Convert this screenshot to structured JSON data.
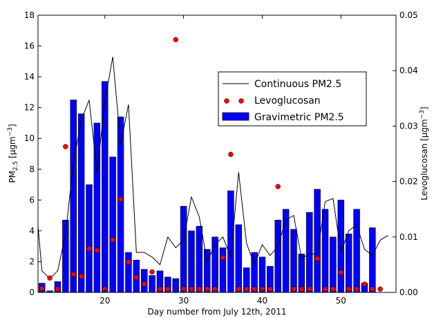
{
  "chart_data": {
    "type": "bar",
    "xlabel": "Day number from July 12th, 2011",
    "ylabel_left_main": "PM",
    "ylabel_left_sub": "2.5",
    "ylabel_left_rest": " [μgm",
    "ylabel_left_sup": "−3",
    "ylabel_left_end": "]",
    "ylabel_right": "Levoglucosan [μgm",
    "ylabel_right_sup": "−3",
    "ylabel_right_end": "]",
    "xlim": [
      11.5,
      57
    ],
    "ylim_left": [
      0,
      18
    ],
    "ylim_right": [
      0,
      0.05
    ],
    "x_ticks": [
      "20",
      "30",
      "40",
      "50"
    ],
    "x_tick_values": [
      20,
      30,
      40,
      50
    ],
    "y_left_ticks": [
      "0",
      "2",
      "4",
      "6",
      "8",
      "10",
      "12",
      "14",
      "16",
      "18"
    ],
    "y_left_tick_values": [
      0,
      2,
      4,
      6,
      8,
      10,
      12,
      14,
      16,
      18
    ],
    "y_right_ticks": [
      "0.00",
      "0.01",
      "0.02",
      "0.03",
      "0.04",
      "0.05"
    ],
    "y_right_tick_values": [
      0,
      0.01,
      0.02,
      0.03,
      0.04,
      0.05
    ],
    "legend": {
      "placement": "center-right",
      "entries": [
        "Continuous PM2.5",
        "Levoglucosan",
        "Gravimetric PM2.5"
      ]
    },
    "colors": {
      "bar": "#0000ff",
      "dot": "#ff0000",
      "line": "#000000"
    },
    "series": [
      {
        "name": "Gravimetric PM2.5",
        "type": "bar",
        "axis": "left",
        "x": [
          12,
          13,
          14,
          15,
          16,
          17,
          18,
          19,
          20,
          21,
          22,
          23,
          24,
          25,
          26,
          27,
          28,
          29,
          30,
          31,
          32,
          33,
          34,
          35,
          36,
          37,
          38,
          39,
          40,
          41,
          42,
          43,
          44,
          45,
          46,
          47,
          48,
          49,
          50,
          51,
          52,
          53,
          54,
          55,
          56
        ],
        "values": [
          0.6,
          0.1,
          0.7,
          4.7,
          12.5,
          11.6,
          7.0,
          11.0,
          13.7,
          8.8,
          11.4,
          2.6,
          2.1,
          1.5,
          1.1,
          1.4,
          1.0,
          0.9,
          5.6,
          4.0,
          4.3,
          2.8,
          3.6,
          2.9,
          6.6,
          4.4,
          1.6,
          2.6,
          2.3,
          1.7,
          4.7,
          5.4,
          4.1,
          2.5,
          5.2,
          6.7,
          5.4,
          3.6,
          6.0,
          3.8,
          5.4,
          0.6,
          4.2,
          0,
          0
        ]
      },
      {
        "name": "Levoglucosan",
        "type": "scatter",
        "axis": "right",
        "x": [
          12,
          13,
          14,
          15,
          16,
          17,
          18,
          19,
          20,
          21,
          22,
          23,
          24,
          25,
          26,
          27,
          28,
          29,
          30,
          31,
          32,
          33,
          34,
          35,
          36,
          37,
          38,
          39,
          40,
          41,
          42,
          43,
          44,
          45,
          46,
          47,
          48,
          49,
          50,
          51,
          52,
          53,
          54,
          55
        ],
        "values": [
          0.0007,
          0.0026,
          0.0006,
          0.0263,
          0.0033,
          0.0029,
          0.0079,
          0.0076,
          0.0006,
          0.0095,
          0.0168,
          0.0055,
          0.0027,
          0.0015,
          0.0037,
          0.0006,
          0.0006,
          0.0456,
          0.0006,
          0.0006,
          0.0006,
          0.0006,
          0.0006,
          0.0063,
          0.0249,
          0.0006,
          0.0006,
          0.0006,
          0.0006,
          0.0006,
          0.0191,
          0.0383,
          0.0006,
          0.0006,
          0.0006,
          0.0061,
          0.0006,
          0.0006,
          0.0036,
          0.0006,
          0.0006,
          0.0015,
          0.0006,
          0.0006
        ]
      },
      {
        "name": "Continuous PM2.5",
        "type": "line",
        "axis": "left",
        "x": [
          11.5,
          12,
          13,
          14,
          15,
          16,
          17,
          18,
          19,
          20,
          21,
          22,
          23,
          24,
          25,
          26,
          27,
          28,
          29,
          30,
          31,
          32,
          33,
          34,
          35,
          36,
          37,
          38,
          39,
          40,
          41,
          42,
          43,
          44,
          45,
          46,
          47,
          48,
          49,
          50,
          51,
          52,
          53,
          54,
          55,
          56
        ],
        "values": [
          4.3,
          1.4,
          0.9,
          1.4,
          3.8,
          8.4,
          11.2,
          12.5,
          7.8,
          12.4,
          15.3,
          9.6,
          12.2,
          2.6,
          2.6,
          2.3,
          1.8,
          3.6,
          2.9,
          3.4,
          6.2,
          4.9,
          2.0,
          3.1,
          3.6,
          2.3,
          7.8,
          3.2,
          1.8,
          3.1,
          2.4,
          3.0,
          4.7,
          5.0,
          2.2,
          2.5,
          2.5,
          5.9,
          6.1,
          2.6,
          4.0,
          4.4,
          2.8,
          2.4,
          3.4,
          3.7
        ]
      }
    ]
  }
}
